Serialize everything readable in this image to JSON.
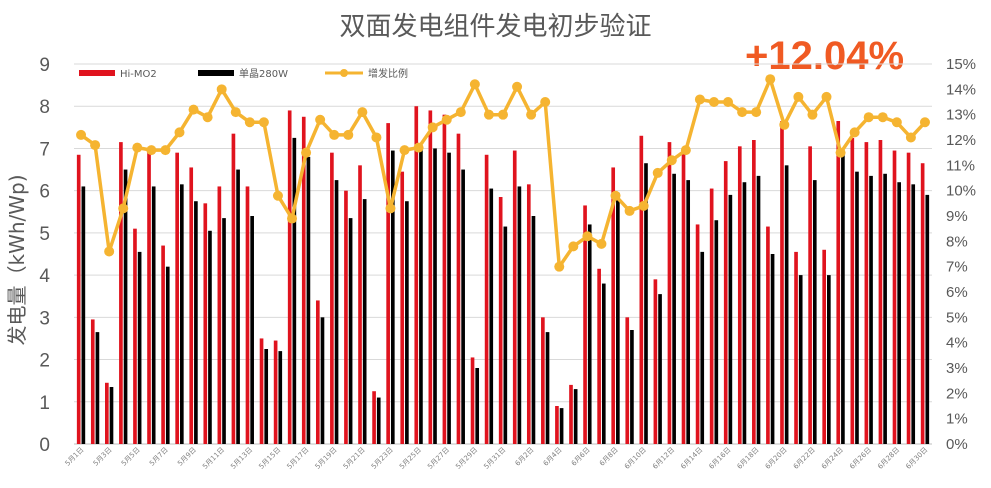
{
  "chart_data": {
    "type": "bar",
    "title": "双面发电组件发电初步验证",
    "highlight": "+12.04%",
    "ylabel": "发电量（kWh/Wp)",
    "ylim": [
      0,
      9
    ],
    "y2lim": [
      0,
      15
    ],
    "y_ticks": [
      "0",
      "1",
      "2",
      "3",
      "4",
      "5",
      "6",
      "7",
      "8",
      "9"
    ],
    "y2_ticks": [
      "0%",
      "1%",
      "2%",
      "3%",
      "4%",
      "5%",
      "6%",
      "7%",
      "8%",
      "9%",
      "10%",
      "11%",
      "12%",
      "13%",
      "14%",
      "15%"
    ],
    "legend_position": "top-left",
    "categories": [
      "5月1日",
      "5月2日",
      "5月3日",
      "5月4日",
      "5月5日",
      "5月6日",
      "5月7日",
      "5月8日",
      "5月9日",
      "5月10日",
      "5月11日",
      "5月12日",
      "5月13日",
      "5月14日",
      "5月15日",
      "5月16日",
      "5月17日",
      "5月18日",
      "5月19日",
      "5月20日",
      "5月21日",
      "5月22日",
      "5月23日",
      "5月24日",
      "5月25日",
      "5月26日",
      "5月27日",
      "5月28日",
      "5月29日",
      "5月30日",
      "5月31日",
      "6月1日",
      "6月2日",
      "6月3日",
      "6月4日",
      "6月5日",
      "6月6日",
      "6月7日",
      "6月8日",
      "6月9日",
      "6月10日",
      "6月11日",
      "6月12日",
      "6月13日",
      "6月14日",
      "6月15日",
      "6月16日",
      "6月17日",
      "6月18日",
      "6月19日",
      "6月20日",
      "6月21日",
      "6月22日",
      "6月23日",
      "6月24日",
      "6月25日",
      "6月26日",
      "6月27日",
      "6月28日",
      "6月29日",
      "6月30日"
    ],
    "x_tick_labels": [
      "5月1日",
      "5月3日",
      "5月5日",
      "5月7日",
      "5月9日",
      "5月11日",
      "5月13日",
      "5月15日",
      "5月17日",
      "5月19日",
      "5月21日",
      "5月23日",
      "5月25日",
      "5月27日",
      "5月29日",
      "5月31日",
      "6月2日",
      "6月4日",
      "6月6日",
      "6月8日",
      "6月10日",
      "6月12日",
      "6月14日",
      "6月16日",
      "6月18日",
      "6月20日",
      "6月22日",
      "6月24日",
      "6月26日",
      "6月28日",
      "6月30日"
    ],
    "series": [
      {
        "name": "Hi-MO2",
        "type": "bar",
        "axis": "left",
        "color": "#e0131e",
        "values": [
          6.85,
          2.95,
          1.45,
          7.15,
          5.1,
          6.95,
          4.7,
          6.9,
          6.55,
          5.7,
          6.1,
          7.35,
          6.1,
          2.5,
          2.45,
          7.9,
          7.75,
          3.4,
          6.9,
          6.0,
          6.6,
          1.25,
          7.6,
          6.45,
          8.0,
          7.9,
          7.8,
          7.35,
          2.05,
          6.85,
          5.85,
          6.95,
          6.15,
          3.0,
          0.9,
          1.4,
          5.65,
          4.15,
          6.55,
          3.0,
          7.3,
          3.9,
          7.15,
          6.95,
          5.2,
          6.05,
          6.7,
          7.05,
          7.2,
          5.15,
          7.65,
          4.55,
          7.05,
          4.6,
          7.65,
          7.25,
          7.15,
          7.2,
          6.95,
          6.9,
          6.65
        ]
      },
      {
        "name": "单晶280W",
        "type": "bar",
        "axis": "left",
        "color": "#000000",
        "values": [
          6.1,
          2.65,
          1.35,
          6.5,
          4.55,
          6.1,
          4.2,
          6.15,
          5.75,
          5.05,
          5.35,
          6.5,
          5.4,
          2.25,
          2.2,
          7.25,
          6.8,
          3.0,
          6.25,
          5.35,
          5.8,
          1.1,
          6.95,
          5.75,
          7.0,
          7.0,
          6.9,
          6.5,
          1.8,
          6.05,
          5.15,
          6.1,
          5.4,
          2.65,
          0.85,
          1.3,
          5.2,
          3.8,
          5.95,
          2.7,
          6.65,
          3.55,
          6.4,
          6.25,
          4.55,
          5.3,
          5.9,
          6.2,
          6.35,
          4.5,
          6.6,
          4.0,
          6.25,
          4.0,
          6.9,
          6.45,
          6.35,
          6.4,
          6.2,
          6.15,
          5.9
        ]
      },
      {
        "name": "增发比例",
        "type": "line",
        "axis": "right",
        "color": "#f5b431",
        "values": [
          12.2,
          11.8,
          7.6,
          9.3,
          11.7,
          11.6,
          11.6,
          12.3,
          13.2,
          12.9,
          14.0,
          13.1,
          12.7,
          12.7,
          9.8,
          8.9,
          11.5,
          12.8,
          12.2,
          12.2,
          13.1,
          12.1,
          9.3,
          11.6,
          11.7,
          12.5,
          12.8,
          13.1,
          14.2,
          13.0,
          13.0,
          14.1,
          13.0,
          13.5,
          7.0,
          7.8,
          8.2,
          7.9,
          9.8,
          9.2,
          9.4,
          10.7,
          11.2,
          11.6,
          13.6,
          13.5,
          13.5,
          13.1,
          13.1,
          14.4,
          12.6,
          13.7,
          13.0,
          13.7,
          11.5,
          12.3,
          12.9,
          12.9,
          12.7,
          12.1,
          12.7
        ]
      }
    ]
  }
}
